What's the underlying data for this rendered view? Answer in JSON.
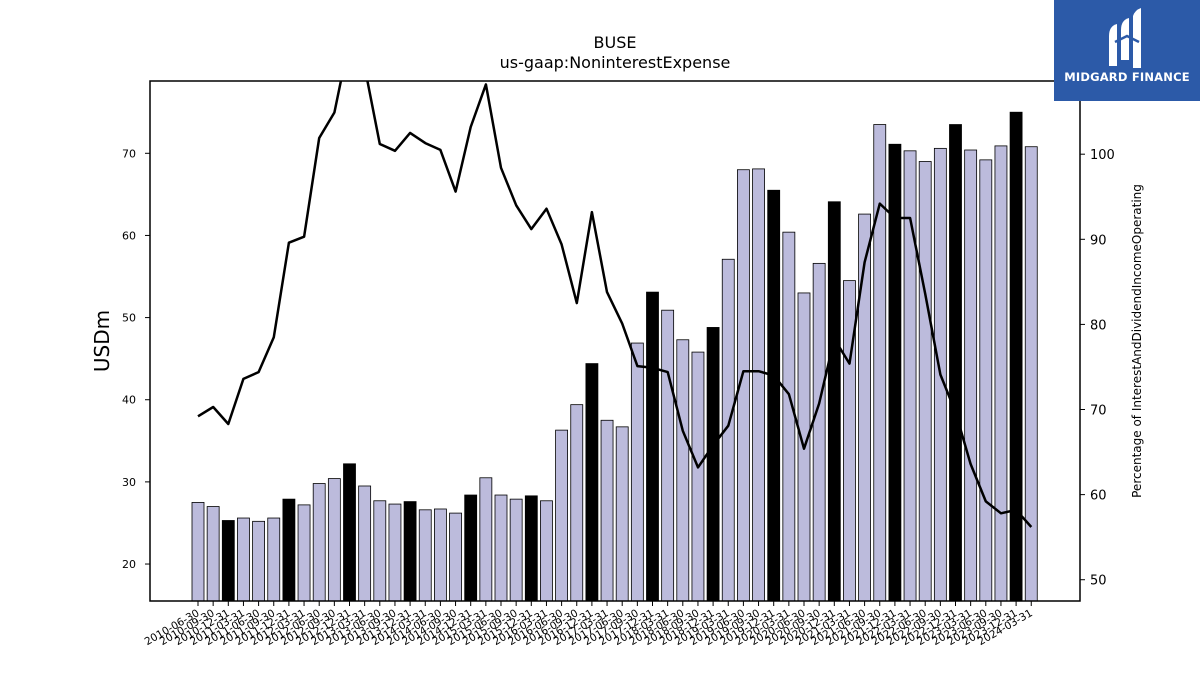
{
  "logo": {
    "text": "MIDGARD FINANCE",
    "background": "#2c5aa8"
  },
  "chart_data": {
    "type": "bar",
    "title": "BUSE",
    "subtitle": "us-gaap:NoninterestExpense",
    "ylabel": "USDm",
    "y2label": "Percentage of InterestAndDividendIncomeOperating",
    "ylim": [
      15.5,
      78.8
    ],
    "y2lim": [
      47.5,
      108.6
    ],
    "yticks": [
      20,
      30,
      40,
      50,
      60,
      70
    ],
    "y2ticks": [
      50,
      60,
      70,
      80,
      90,
      100
    ],
    "colors": {
      "bar": "#bcbbdc",
      "bar_highlight": "#000000",
      "line": "#000000",
      "edge": "#000000"
    },
    "categories": [
      "2010-06-30",
      "2010-09-30",
      "2010-12-31",
      "2011-03-31",
      "2011-06-30",
      "2011-09-30",
      "2011-12-31",
      "2012-03-31",
      "2012-06-30",
      "2012-09-30",
      "2012-12-31",
      "2013-03-31",
      "2013-06-30",
      "2013-09-30",
      "2013-12-31",
      "2014-03-31",
      "2014-06-30",
      "2014-09-30",
      "2014-12-31",
      "2015-03-31",
      "2015-06-30",
      "2015-09-30",
      "2015-12-31",
      "2016-03-31",
      "2016-06-30",
      "2016-09-30",
      "2016-12-31",
      "2017-03-31",
      "2017-06-30",
      "2017-09-30",
      "2017-12-31",
      "2018-03-31",
      "2018-06-30",
      "2018-09-30",
      "2018-12-31",
      "2019-03-31",
      "2019-06-30",
      "2019-09-30",
      "2019-12-31",
      "2020-03-31",
      "2020-06-30",
      "2020-09-30",
      "2020-12-31",
      "2021-03-31",
      "2021-06-30",
      "2021-09-30",
      "2021-12-31",
      "2022-03-31",
      "2022-06-30",
      "2022-09-30",
      "2022-12-31",
      "2023-03-31",
      "2023-06-30",
      "2023-09-30",
      "2023-12-31",
      "2024-03-31"
    ],
    "series": [
      {
        "kind": "bar",
        "values": [
          27.5,
          27.0,
          25.3,
          25.6,
          25.2,
          25.6,
          27.9,
          27.2,
          29.8,
          30.4,
          32.2,
          29.5,
          27.7,
          27.3,
          27.6,
          26.6,
          26.7,
          26.2,
          28.4,
          30.5,
          28.4,
          27.9,
          28.3,
          27.7,
          36.3,
          39.4,
          44.4,
          37.5,
          36.7,
          46.9,
          53.1,
          50.9,
          47.3,
          45.8,
          48.8,
          57.1,
          68.0,
          68.1,
          65.5,
          60.4,
          53.0,
          56.6,
          64.1,
          54.5,
          62.6,
          73.5,
          71.1,
          70.3,
          69.0,
          70.6,
          73.5,
          70.4,
          69.2,
          70.9,
          75.0,
          70.8
        ],
        "highlight": [
          false,
          false,
          true,
          false,
          false,
          false,
          true,
          false,
          false,
          false,
          true,
          false,
          false,
          false,
          true,
          false,
          false,
          false,
          true,
          false,
          false,
          false,
          true,
          false,
          false,
          false,
          true,
          false,
          false,
          false,
          true,
          false,
          false,
          false,
          true,
          false,
          false,
          false,
          true,
          false,
          false,
          false,
          true,
          false,
          false,
          false,
          true,
          false,
          false,
          false,
          true,
          false,
          false,
          false,
          true,
          false
        ]
      },
      {
        "kind": "line",
        "axis": "right",
        "values": [
          69.2,
          70.3,
          68.3,
          73.6,
          74.4,
          78.5,
          89.6,
          90.3,
          101.9,
          104.9,
          113.5,
          110.3,
          101.2,
          100.4,
          102.5,
          101.3,
          100.5,
          95.6,
          103.2,
          108.2,
          98.4,
          94.0,
          91.2,
          93.6,
          89.4,
          82.5,
          93.2,
          83.8,
          80.1,
          75.1,
          74.9,
          74.4,
          67.5,
          63.2,
          65.8,
          68.1,
          74.5,
          74.5,
          74.0,
          71.8,
          65.4,
          70.7,
          78.3,
          75.4,
          87.3,
          94.2,
          92.5,
          92.5,
          83.6,
          74.1,
          69.7,
          63.6,
          59.2,
          57.8,
          58.2,
          56.2
        ]
      }
    ],
    "legend": "none",
    "grid": false
  }
}
